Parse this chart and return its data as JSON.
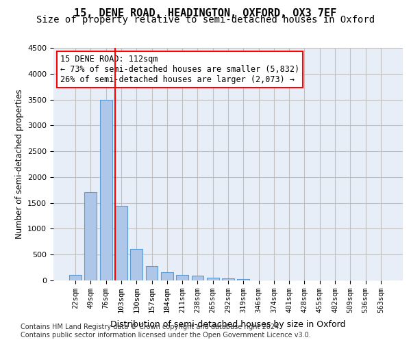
{
  "title1": "15, DENE ROAD, HEADINGTON, OXFORD, OX3 7EF",
  "title2": "Size of property relative to semi-detached houses in Oxford",
  "xlabel": "Distribution of semi-detached houses by size in Oxford",
  "ylabel": "Number of semi-detached properties",
  "categories": [
    "22sqm",
    "49sqm",
    "76sqm",
    "103sqm",
    "130sqm",
    "157sqm",
    "184sqm",
    "211sqm",
    "238sqm",
    "265sqm",
    "292sqm",
    "319sqm",
    "346sqm",
    "374sqm",
    "401sqm",
    "428sqm",
    "455sqm",
    "482sqm",
    "509sqm",
    "536sqm",
    "563sqm"
  ],
  "values": [
    110,
    1710,
    3490,
    1440,
    615,
    275,
    155,
    100,
    90,
    55,
    45,
    30,
    0,
    0,
    0,
    0,
    0,
    0,
    0,
    0,
    0
  ],
  "bar_color": "#aec6e8",
  "bar_edge_color": "#5b9bd5",
  "annotation_text": "15 DENE ROAD: 112sqm\n← 73% of semi-detached houses are smaller (5,832)\n26% of semi-detached houses are larger (2,073) →",
  "vline_x": 3.0,
  "vline_color": "red",
  "box_color": "red",
  "ylim": [
    0,
    4500
  ],
  "yticks": [
    0,
    500,
    1000,
    1500,
    2000,
    2500,
    3000,
    3500,
    4000,
    4500
  ],
  "grid_color": "#c0c0c0",
  "bg_color": "#e8eef7",
  "footer": "Contains HM Land Registry data © Crown copyright and database right 2024.\nContains public sector information licensed under the Open Government Licence v3.0.",
  "title_fontsize": 11,
  "subtitle_fontsize": 10,
  "annot_fontsize": 8.5,
  "footer_fontsize": 7
}
